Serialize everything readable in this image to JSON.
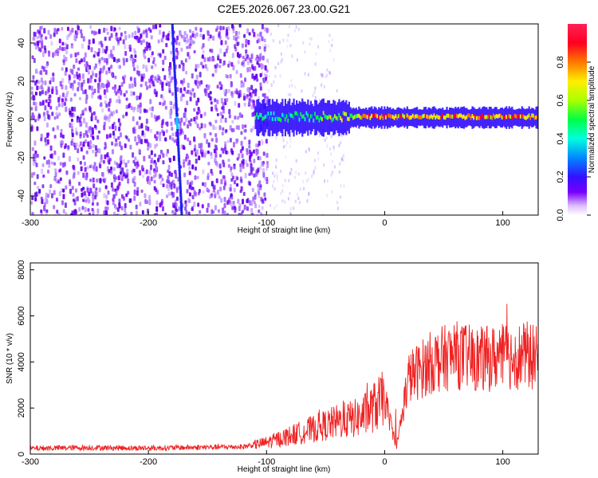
{
  "title": "C2E5.2026.067.23.00.G21",
  "colors": {
    "snr_line": "#ee2222",
    "axis": "#000000",
    "colormap_stops": [
      "#ffffff",
      "#7700ff",
      "#3311ff",
      "#0088ff",
      "#00ffdd",
      "#00ff44",
      "#aaff00",
      "#ffee00",
      "#ff7700",
      "#ff0022",
      "#ff2255"
    ]
  },
  "chart_data": [
    {
      "type": "heatmap",
      "name": "spectrogram",
      "xlabel": "Height of straight line (km)",
      "ylabel": "Frequency (Hz)",
      "xlim": [
        -300,
        130
      ],
      "ylim": [
        -50,
        50
      ],
      "xticks": [
        -300,
        -200,
        -100,
        0,
        100
      ],
      "yticks": [
        -40,
        -20,
        0,
        20,
        40
      ],
      "colorbar": {
        "label": "Normalized spectral amplitude",
        "range": [
          0,
          1
        ],
        "ticks": [
          "0.0",
          "0.2",
          "0.4",
          "0.6",
          "0.8"
        ],
        "tick_values": [
          0.0,
          0.2,
          0.4,
          0.6,
          0.8
        ]
      },
      "features": {
        "noise_region_x": [
          -300,
          -110
        ],
        "signal_start_x": -110,
        "signal_center_freq": 1,
        "diagonal_streak": {
          "x_top": -180,
          "x_bottom": -172
        },
        "mid_streak_x": -175
      }
    },
    {
      "type": "line",
      "name": "snr",
      "xlabel": "Height of straight line (km)",
      "ylabel": "SNR (10 * v/v)",
      "xlim": [
        -300,
        130
      ],
      "ylim": [
        0,
        8300
      ],
      "xticks": [
        -300,
        -200,
        -100,
        0,
        100
      ],
      "yticks": [
        0,
        2000,
        4000,
        6000,
        8000
      ],
      "series": [
        {
          "x": [
            -300,
            -250,
            -200,
            -150,
            -120,
            -100,
            -80,
            -60,
            -40,
            -20,
            0,
            10,
            20,
            40,
            60,
            80,
            100,
            120,
            130
          ],
          "values": [
            250,
            280,
            260,
            300,
            320,
            500,
            800,
            1100,
            1400,
            1600,
            2400,
            300,
            3300,
            4000,
            4300,
            4100,
            4200,
            4300,
            4100
          ]
        }
      ]
    }
  ]
}
